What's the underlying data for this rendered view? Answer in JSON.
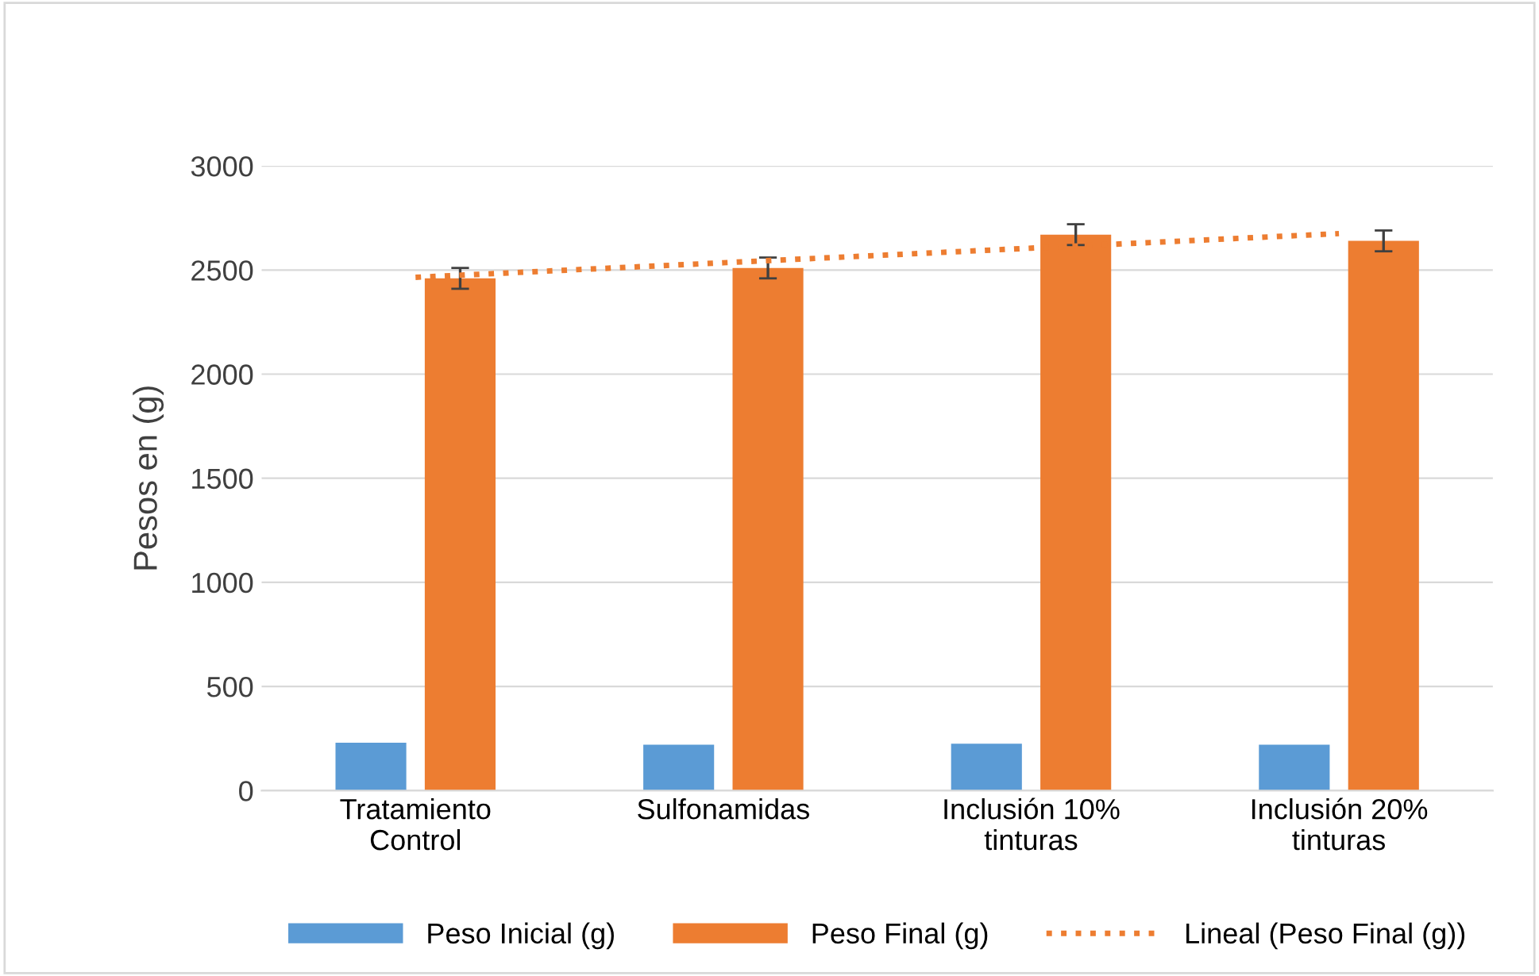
{
  "chart_data": {
    "type": "bar",
    "ylabel": "Pesos en (g)",
    "categories": [
      "Tratamiento\nControl",
      "Sulfonamidas",
      "Inclusión 10%\ntinturas",
      "Inclusión 20%\ntinturas"
    ],
    "series": [
      {
        "name": "Peso Inicial (g)",
        "color": "#5b9bd5",
        "values": [
          230,
          220,
          225,
          220
        ]
      },
      {
        "name": "Peso Final (g)",
        "color": "#ed7d31",
        "values": [
          2460,
          2510,
          2670,
          2640
        ],
        "errors": [
          50,
          50,
          50,
          50
        ]
      },
      {
        "name": "Lineal (Peso Final (g))",
        "type": "line",
        "color": "#ed7d31",
        "line_style": "dotted",
        "values": [
          2465,
          2535,
          2605,
          2675
        ]
      }
    ],
    "ylim": [
      0,
      3000
    ],
    "yticks": [
      0,
      500,
      1000,
      1500,
      2000,
      2500,
      3000
    ],
    "grid": "y",
    "legend": "bottom"
  }
}
